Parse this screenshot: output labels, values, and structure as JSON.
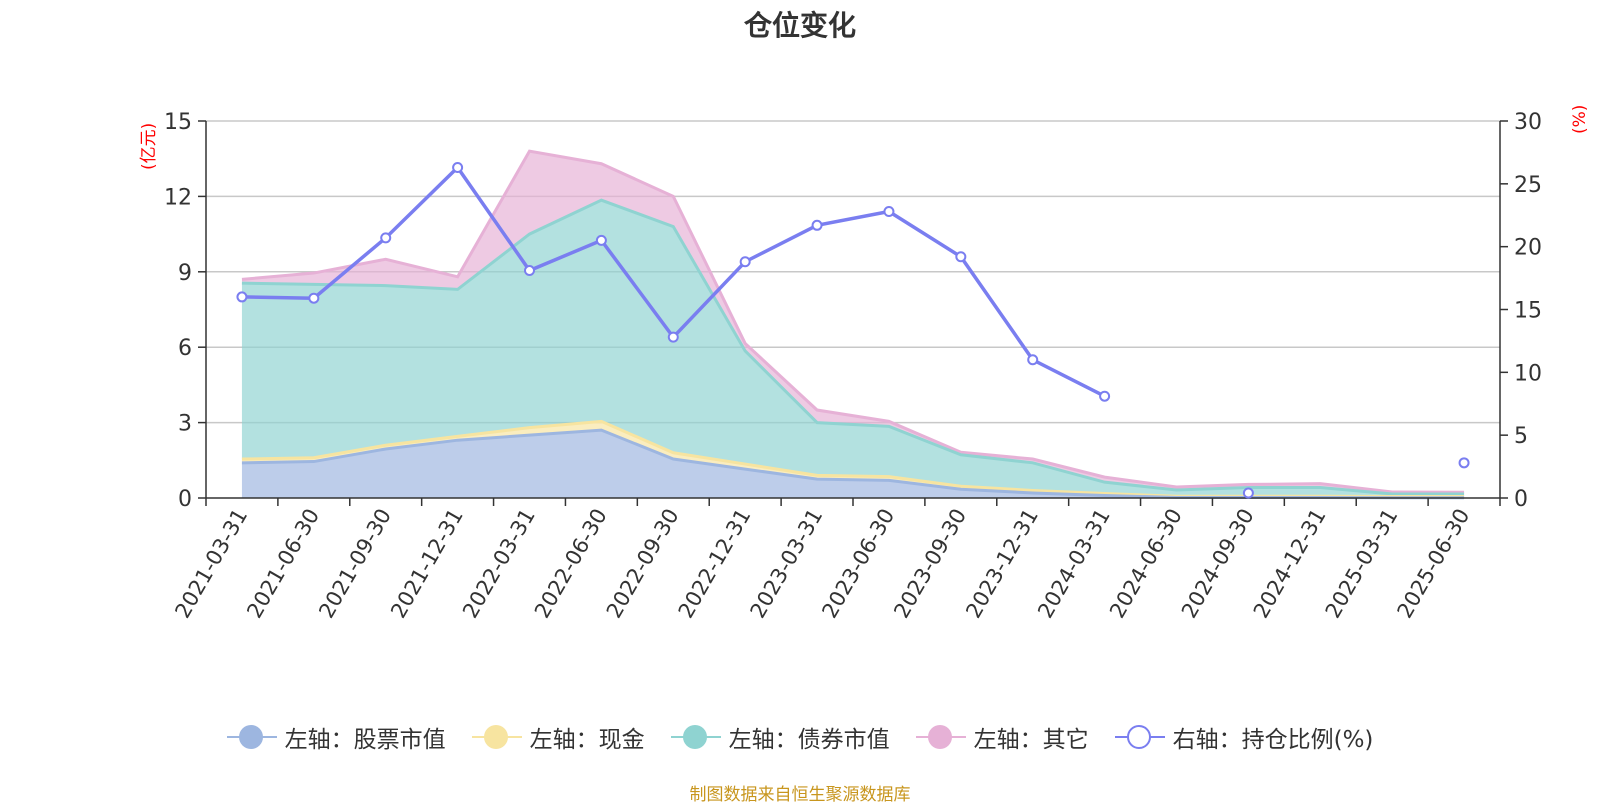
{
  "title": "仓位变化",
  "left_unit": "(亿元)",
  "right_unit": "(%)",
  "footer": "制图数据来自恒生聚源数据库",
  "colors": {
    "stock": "#9db6e0",
    "cash": "#f7e4a0",
    "bond": "#8fd3d1",
    "other": "#e6b1d6",
    "ratio": "#7a7ef0",
    "unit": "#ff0000",
    "footer": "#c8961e"
  },
  "legend": [
    {
      "label": "左轴：股票市值",
      "color": "#9db6e0",
      "icon": "filled-circle-icon"
    },
    {
      "label": "左轴：现金",
      "color": "#f7e4a0",
      "icon": "filled-circle-icon"
    },
    {
      "label": "左轴：债券市值",
      "color": "#8fd3d1",
      "icon": "filled-circle-icon"
    },
    {
      "label": "左轴：其它",
      "color": "#e6b1d6",
      "icon": "filled-circle-icon"
    },
    {
      "label": "右轴：持仓比例(%)",
      "color": "#7a7ef0",
      "icon": "hollow-circle-icon"
    }
  ],
  "chart_data": {
    "type": "area",
    "stacked": true,
    "categories": [
      "2021-03-31",
      "2021-06-30",
      "2021-09-30",
      "2021-12-31",
      "2022-03-31",
      "2022-06-30",
      "2022-09-30",
      "2022-12-31",
      "2023-03-31",
      "2023-06-30",
      "2023-09-30",
      "2023-12-31",
      "2024-03-31",
      "2024-06-30",
      "2024-09-30",
      "2024-12-31",
      "2025-03-31",
      "2025-06-30"
    ],
    "left_axis": {
      "min": 0,
      "max": 15,
      "ticks": [
        0,
        3,
        6,
        9,
        12,
        15
      ]
    },
    "right_axis": {
      "min": 0,
      "max": 30,
      "ticks": [
        0,
        5,
        10,
        15,
        20,
        25,
        30
      ]
    },
    "grid": true,
    "legend_position": "bottom",
    "series": [
      {
        "name": "左轴：股票市值",
        "axis": "left",
        "values": [
          1.4,
          1.45,
          1.95,
          2.3,
          2.5,
          2.7,
          1.55,
          1.15,
          0.75,
          0.7,
          0.35,
          0.2,
          0.1,
          0.02,
          0.02,
          0.02,
          0.01,
          0.01
        ]
      },
      {
        "name": "左轴：现金",
        "axis": "left",
        "values": [
          0.15,
          0.15,
          0.15,
          0.15,
          0.3,
          0.35,
          0.25,
          0.2,
          0.15,
          0.15,
          0.12,
          0.1,
          0.08,
          0.05,
          0.05,
          0.05,
          0.05,
          0.05
        ]
      },
      {
        "name": "左轴：债券市值",
        "axis": "left",
        "values": [
          7.0,
          6.9,
          6.35,
          5.85,
          7.7,
          8.8,
          9.0,
          4.5,
          2.1,
          2.0,
          1.25,
          1.1,
          0.45,
          0.25,
          0.35,
          0.35,
          0.1,
          0.1
        ]
      },
      {
        "name": "左轴：其它",
        "axis": "left",
        "values": [
          0.15,
          0.45,
          1.05,
          0.5,
          3.3,
          1.45,
          1.2,
          0.3,
          0.5,
          0.2,
          0.1,
          0.15,
          0.2,
          0.12,
          0.12,
          0.15,
          0.08,
          0.07
        ]
      },
      {
        "name": "右轴：持仓比例(%)",
        "axis": "right",
        "values": [
          16.0,
          15.9,
          20.7,
          26.3,
          18.1,
          20.5,
          12.8,
          18.8,
          21.7,
          22.8,
          19.2,
          11.0,
          8.1,
          null,
          0.4,
          null,
          null,
          2.8
        ]
      }
    ]
  }
}
